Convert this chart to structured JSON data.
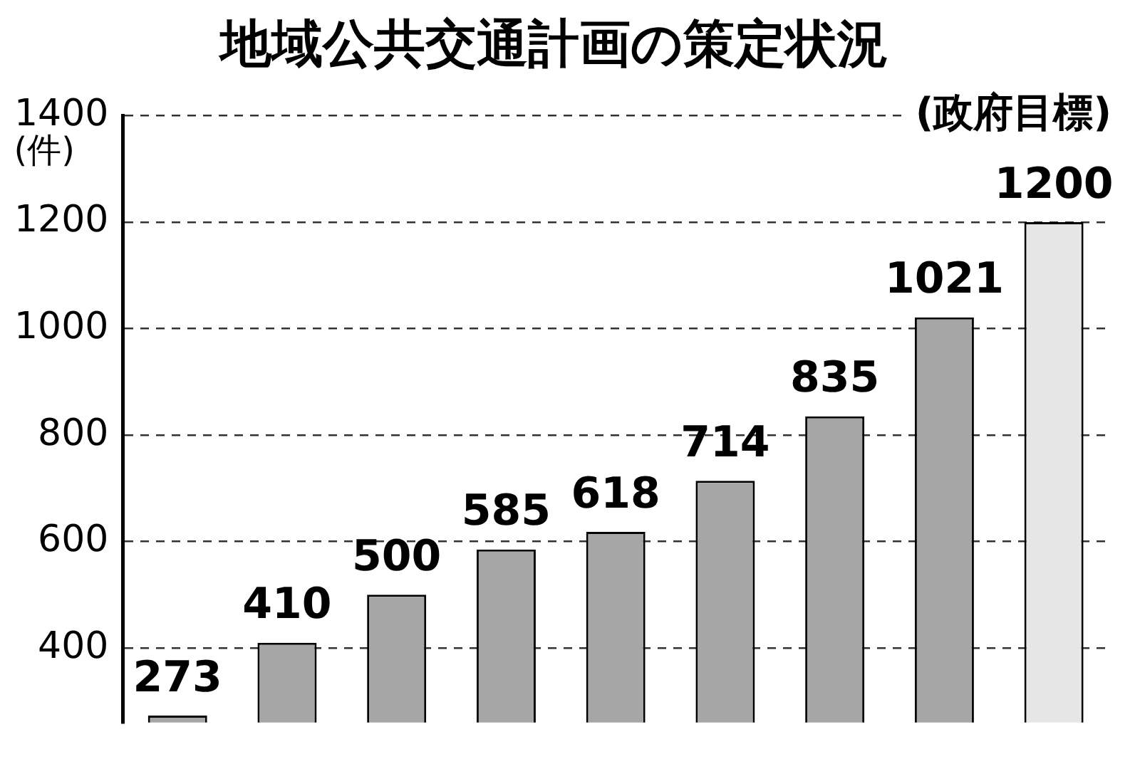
{
  "chart_data": {
    "type": "bar",
    "title": "地域公共交通計画の策定状況",
    "ylabel": "(件)",
    "categories": [
      null,
      null,
      null,
      null,
      null,
      null,
      null,
      null,
      null
    ],
    "values": [
      273,
      410,
      500,
      585,
      618,
      714,
      835,
      1021,
      1200
    ],
    "colors": [
      "#a6a6a6",
      "#a6a6a6",
      "#a6a6a6",
      "#a6a6a6",
      "#a6a6a6",
      "#a6a6a6",
      "#a6a6a6",
      "#a6a6a6",
      "#e6e6e6"
    ],
    "ylim": [
      260,
      1400
    ],
    "yticks": [
      400,
      600,
      800,
      1000,
      1200,
      1400
    ],
    "grid": "y",
    "data_labels": true,
    "annotations": [
      "(政府目標)"
    ]
  }
}
